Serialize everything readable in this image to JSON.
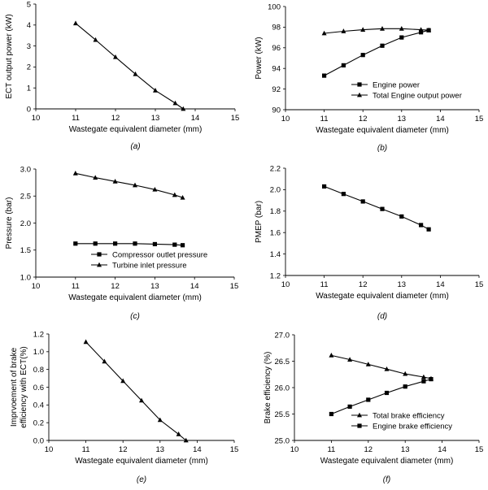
{
  "chart_data": [
    {
      "type": "line",
      "panel_label": "(a)",
      "xlabel": "Wastegate equivalent diameter  (mm)",
      "ylabel": "ECT output power (kW)",
      "xlim": [
        10,
        15
      ],
      "ylim": [
        0,
        5
      ],
      "xticks": [
        "10",
        "11",
        "12",
        "13",
        "14",
        "15"
      ],
      "yticks": [
        "0",
        "1",
        "2",
        "3",
        "4",
        "5"
      ],
      "grid": false,
      "legend": "none",
      "x": [
        11,
        11.5,
        12,
        12.5,
        13,
        13.5,
        13.7
      ],
      "series": [
        {
          "marker": "triangle",
          "values": [
            4.08,
            3.29,
            2.47,
            1.66,
            0.88,
            0.27,
            0.0
          ]
        }
      ]
    },
    {
      "type": "line",
      "panel_label": "(b)",
      "xlabel": "Wastegate equivalent diameter  (mm)",
      "ylabel": "Power (kW)",
      "xlim": [
        10,
        15
      ],
      "ylim": [
        90,
        100
      ],
      "xticks": [
        "10",
        "11",
        "12",
        "13",
        "14",
        "15"
      ],
      "yticks": [
        "90",
        "92",
        "94",
        "96",
        "98",
        "100"
      ],
      "grid": false,
      "legend": "bottom-right",
      "x": [
        11,
        11.5,
        12,
        12.5,
        13,
        13.5,
        13.7
      ],
      "series": [
        {
          "name": "Engine power",
          "marker": "square",
          "values": [
            93.3,
            94.3,
            95.3,
            96.2,
            97.0,
            97.5,
            97.7
          ]
        },
        {
          "name": "Total Engine output power",
          "marker": "triangle",
          "values": [
            97.4,
            97.6,
            97.75,
            97.85,
            97.85,
            97.75,
            97.7
          ]
        }
      ]
    },
    {
      "type": "line",
      "panel_label": "(c)",
      "xlabel": "Wastegate equivalent diameter  (mm)",
      "ylabel": "Pressure (bar)",
      "xlim": [
        10,
        15
      ],
      "ylim": [
        1.0,
        3.0
      ],
      "xticks": [
        "10",
        "11",
        "12",
        "13",
        "14",
        "15"
      ],
      "yticks": [
        "1.0",
        "1.5",
        "2.0",
        "2.5",
        "3.0"
      ],
      "grid": false,
      "legend": "bottom-right",
      "x": [
        11,
        11.5,
        12,
        12.5,
        13,
        13.5,
        13.7
      ],
      "series": [
        {
          "name": "Compressor outlet pressure",
          "marker": "square",
          "values": [
            1.62,
            1.62,
            1.62,
            1.62,
            1.61,
            1.6,
            1.59
          ]
        },
        {
          "name": "Turbine inlet pressure",
          "marker": "triangle",
          "values": [
            2.92,
            2.84,
            2.77,
            2.7,
            2.62,
            2.52,
            2.47
          ]
        }
      ]
    },
    {
      "type": "line",
      "panel_label": "(d)",
      "xlabel": "Wastegate equivalent diameter  (mm)",
      "ylabel": "PMEP (bar)",
      "xlim": [
        10,
        15
      ],
      "ylim": [
        1.2,
        2.2
      ],
      "xticks": [
        "10",
        "11",
        "12",
        "13",
        "14",
        "15"
      ],
      "yticks": [
        "1.2",
        "1.4",
        "1.6",
        "1.8",
        "2.0",
        "2.2"
      ],
      "grid": false,
      "legend": "none",
      "x": [
        11,
        11.5,
        12,
        12.5,
        13,
        13.5,
        13.7
      ],
      "series": [
        {
          "marker": "square",
          "values": [
            2.03,
            1.96,
            1.89,
            1.82,
            1.75,
            1.67,
            1.63
          ]
        }
      ]
    },
    {
      "type": "line",
      "panel_label": "(e)",
      "xlabel": "Wastegate equivalent diameter  (mm)",
      "ylabel": "Imprvoement of brake efficiency  with ECT(%)",
      "ylabel_lines": [
        "Imprvoement of brake",
        "efficiency  with ECT(%)"
      ],
      "xlim": [
        10,
        15
      ],
      "ylim": [
        0.0,
        1.2
      ],
      "xticks": [
        "10",
        "11",
        "12",
        "13",
        "14",
        "15"
      ],
      "yticks": [
        "0.0",
        "0.2",
        "0.4",
        "0.6",
        "0.8",
        "1.0",
        "1.2"
      ],
      "grid": false,
      "legend": "none",
      "x": [
        11,
        11.5,
        12,
        12.5,
        13,
        13.5,
        13.7
      ],
      "series": [
        {
          "marker": "triangle",
          "values": [
            1.11,
            0.89,
            0.67,
            0.45,
            0.23,
            0.07,
            0.0
          ]
        }
      ]
    },
    {
      "type": "line",
      "panel_label": "(f)",
      "xlabel": "Wastegate equivalent diameter  (mm)",
      "ylabel": "Brake efficiency (%)",
      "xlim": [
        10,
        15
      ],
      "ylim": [
        25.0,
        27.0
      ],
      "xticks": [
        "10",
        "11",
        "12",
        "13",
        "14",
        "15"
      ],
      "yticks": [
        "25.0",
        "25.5",
        "26.0",
        "26.5",
        "27.0"
      ],
      "grid": false,
      "legend": "bottom-right",
      "x": [
        11,
        11.5,
        12,
        12.5,
        13,
        13.5,
        13.7
      ],
      "series": [
        {
          "name": "Total brake efficiency",
          "marker": "triangle",
          "values": [
            26.61,
            26.53,
            26.44,
            26.35,
            26.26,
            26.2,
            26.17
          ]
        },
        {
          "name": "Engine brake efficiency",
          "marker": "square",
          "values": [
            25.5,
            25.64,
            25.77,
            25.9,
            26.02,
            26.12,
            26.16
          ]
        }
      ]
    }
  ]
}
